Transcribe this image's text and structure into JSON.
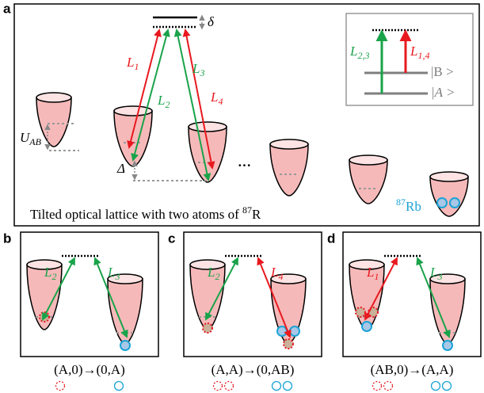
{
  "panels": {
    "a": {
      "label": "a",
      "delta_small": "δ",
      "delta_big": "Δ",
      "u_ab": {
        "main": "U",
        "sub": "AB"
      },
      "beams": [
        {
          "main": "L",
          "sub": "1"
        },
        {
          "main": "L",
          "sub": "2"
        },
        {
          "main": "L",
          "sub": "3"
        },
        {
          "main": "L",
          "sub": "4"
        }
      ],
      "ellipsis": "···",
      "caption": {
        "text": "Tilted optical lattice with two atoms of ",
        "sup": "87",
        "end": "R"
      },
      "rb": {
        "sup": "87",
        "text": "Rb"
      },
      "inset": {
        "left": {
          "main": "L",
          "sub": "2,3"
        },
        "right": {
          "main": "L",
          "sub": "1,4"
        },
        "level_b": "|B >",
        "level_a": "|A >"
      }
    },
    "b": {
      "label": "b",
      "left_beam": {
        "main": "L",
        "sub": "2"
      },
      "right_beam": {
        "main": "L",
        "sub": "3"
      },
      "caption": "(A,0)→(0,A)"
    },
    "c": {
      "label": "c",
      "left_beam": {
        "main": "L",
        "sub": "2"
      },
      "right_beam": {
        "main": "L",
        "sub": "4"
      },
      "caption": "(A,A)→(0,AB)"
    },
    "d": {
      "label": "d",
      "left_beam": {
        "main": "L",
        "sub": "1"
      },
      "right_beam": {
        "main": "L",
        "sub": "3"
      },
      "caption": "(AB,0)→(A,A)"
    }
  }
}
